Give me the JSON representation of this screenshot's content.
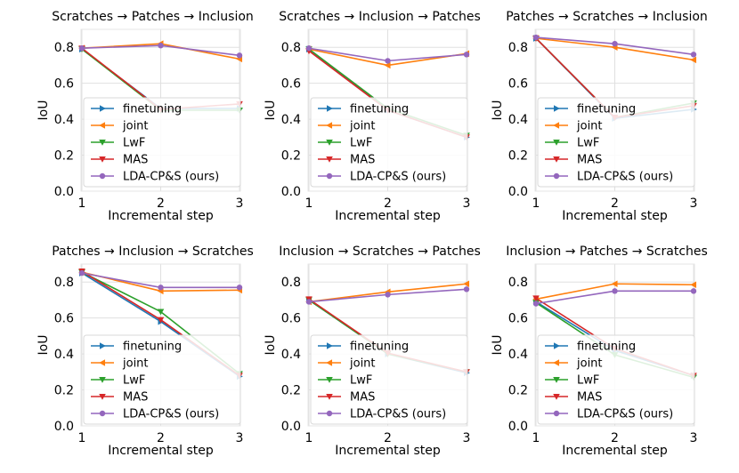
{
  "colors": {
    "finetuning": "#1f77b4",
    "joint": "#ff7f0e",
    "lwf": "#2ca02c",
    "mas": "#d62728",
    "lda": "#9467bd"
  },
  "legend_labels": [
    "finetuning",
    "joint",
    "LwF",
    "MAS",
    "LDA-CP&S (ours)"
  ],
  "chart_data": [
    {
      "type": "line",
      "title": "Scratches → Patches → Inclusion",
      "xlabel": "Incremental step",
      "ylabel": "IoU",
      "x": [
        1,
        2,
        3
      ],
      "ylim": [
        0.0,
        0.9
      ],
      "yticks": [
        "0.0",
        "0.2",
        "0.4",
        "0.6",
        "0.8"
      ],
      "legend": "center",
      "series": [
        {
          "name": "finetuning",
          "values": [
            0.79,
            0.46,
            0.46
          ]
        },
        {
          "name": "joint",
          "values": [
            0.795,
            0.82,
            0.735
          ]
        },
        {
          "name": "LwF",
          "values": [
            0.79,
            0.45,
            0.45
          ]
        },
        {
          "name": "MAS",
          "values": [
            0.795,
            0.455,
            0.485
          ]
        },
        {
          "name": "LDA-CP&S (ours)",
          "values": [
            0.795,
            0.81,
            0.755
          ]
        }
      ]
    },
    {
      "type": "line",
      "title": "Scratches → Inclusion → Patches",
      "xlabel": "Incremental step",
      "ylabel": "IoU",
      "x": [
        1,
        2,
        3
      ],
      "ylim": [
        0.0,
        0.9
      ],
      "yticks": [
        "0.0",
        "0.2",
        "0.4",
        "0.6",
        "0.8"
      ],
      "legend": "center",
      "series": [
        {
          "name": "finetuning",
          "values": [
            0.79,
            0.45,
            0.3
          ]
        },
        {
          "name": "joint",
          "values": [
            0.79,
            0.7,
            0.765
          ]
        },
        {
          "name": "LwF",
          "values": [
            0.79,
            0.46,
            0.31
          ]
        },
        {
          "name": "MAS",
          "values": [
            0.78,
            0.45,
            0.3
          ]
        },
        {
          "name": "LDA-CP&S (ours)",
          "values": [
            0.795,
            0.725,
            0.76
          ]
        }
      ]
    },
    {
      "type": "line",
      "title": "Patches → Scratches → Inclusion",
      "xlabel": "Incremental step",
      "ylabel": "IoU",
      "x": [
        1,
        2,
        3
      ],
      "ylim": [
        0.0,
        0.9
      ],
      "yticks": [
        "0.0",
        "0.2",
        "0.4",
        "0.6",
        "0.8"
      ],
      "legend": "center",
      "series": [
        {
          "name": "finetuning",
          "values": [
            0.85,
            0.405,
            0.455
          ]
        },
        {
          "name": "joint",
          "values": [
            0.85,
            0.8,
            0.73
          ]
        },
        {
          "name": "LwF",
          "values": [
            0.85,
            0.41,
            0.49
          ]
        },
        {
          "name": "MAS",
          "values": [
            0.85,
            0.41,
            0.475
          ]
        },
        {
          "name": "LDA-CP&S (ours)",
          "values": [
            0.855,
            0.82,
            0.76
          ]
        }
      ]
    },
    {
      "type": "line",
      "title": "Patches → Inclusion → Scratches",
      "xlabel": "Incremental step",
      "ylabel": "IoU",
      "x": [
        1,
        2,
        3
      ],
      "ylim": [
        0.0,
        0.9
      ],
      "yticks": [
        "0.0",
        "0.2",
        "0.4",
        "0.6",
        "0.8"
      ],
      "legend": "lower-left",
      "series": [
        {
          "name": "finetuning",
          "values": [
            0.85,
            0.58,
            0.275
          ]
        },
        {
          "name": "joint",
          "values": [
            0.855,
            0.75,
            0.755
          ]
        },
        {
          "name": "LwF",
          "values": [
            0.855,
            0.635,
            0.29
          ]
        },
        {
          "name": "MAS",
          "values": [
            0.86,
            0.59,
            0.28
          ]
        },
        {
          "name": "LDA-CP&S (ours)",
          "values": [
            0.85,
            0.77,
            0.77
          ]
        }
      ]
    },
    {
      "type": "line",
      "title": "Inclusion → Scratches → Patches",
      "xlabel": "Incremental step",
      "ylabel": "IoU",
      "x": [
        1,
        2,
        3
      ],
      "ylim": [
        0.0,
        0.9
      ],
      "yticks": [
        "0.0",
        "0.2",
        "0.4",
        "0.6",
        "0.8"
      ],
      "legend": "lower-left",
      "series": [
        {
          "name": "finetuning",
          "values": [
            0.7,
            0.4,
            0.295
          ]
        },
        {
          "name": "joint",
          "values": [
            0.69,
            0.745,
            0.79
          ]
        },
        {
          "name": "LwF",
          "values": [
            0.7,
            0.4,
            0.3
          ]
        },
        {
          "name": "MAS",
          "values": [
            0.705,
            0.405,
            0.3
          ]
        },
        {
          "name": "LDA-CP&S (ours)",
          "values": [
            0.69,
            0.73,
            0.76
          ]
        }
      ]
    },
    {
      "type": "line",
      "title": "Inclusion → Patches → Scratches",
      "xlabel": "Incremental step",
      "ylabel": "IoU",
      "x": [
        1,
        2,
        3
      ],
      "ylim": [
        0.0,
        0.9
      ],
      "yticks": [
        "0.0",
        "0.2",
        "0.4",
        "0.6",
        "0.8"
      ],
      "legend": "lower-left",
      "series": [
        {
          "name": "finetuning",
          "values": [
            0.69,
            0.42,
            0.28
          ]
        },
        {
          "name": "joint",
          "values": [
            0.705,
            0.79,
            0.785
          ]
        },
        {
          "name": "LwF",
          "values": [
            0.685,
            0.395,
            0.27
          ]
        },
        {
          "name": "MAS",
          "values": [
            0.71,
            0.43,
            0.28
          ]
        },
        {
          "name": "LDA-CP&S (ours)",
          "values": [
            0.68,
            0.75,
            0.75
          ]
        }
      ]
    }
  ]
}
